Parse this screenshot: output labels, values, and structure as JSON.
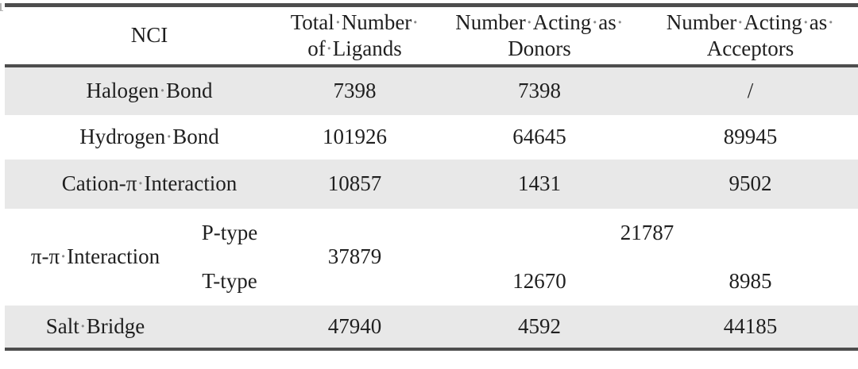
{
  "header": {
    "nci": "NCI",
    "total_line1": "Total·Number·",
    "total_line2": "of·Ligands",
    "donors_line1": "Number·Acting·as·",
    "donors_line2": "Donors",
    "acceptors_line1": "Number·Acting·as·",
    "acceptors_line2": "Acceptors"
  },
  "rows": {
    "halogen": {
      "label": "Halogen·Bond",
      "total": "7398",
      "donors": "7398",
      "acceptors": "/"
    },
    "hydrogen": {
      "label": "Hydrogen·Bond",
      "total": "101926",
      "donors": "64645",
      "acceptors": "89945"
    },
    "cation_pi": {
      "label": "Cation-π·Interaction",
      "total": "10857",
      "donors": "1431",
      "acceptors": "9502"
    },
    "pi_pi": {
      "label": "π-π·Interaction",
      "total": "37879",
      "p_type": {
        "label": "P-type",
        "combined": "21787"
      },
      "t_type": {
        "label": "T-type",
        "donors": "12670",
        "acceptors": "8985"
      }
    },
    "salt_bridge": {
      "label": "Salt·Bridge",
      "total": "47940",
      "donors": "4592",
      "acceptors": "44185"
    }
  },
  "colors": {
    "row_shading": "#e8e8e8",
    "border": "#4d4d4d",
    "text": "#1f1f1f",
    "space_mark": "#8a8a8a"
  }
}
